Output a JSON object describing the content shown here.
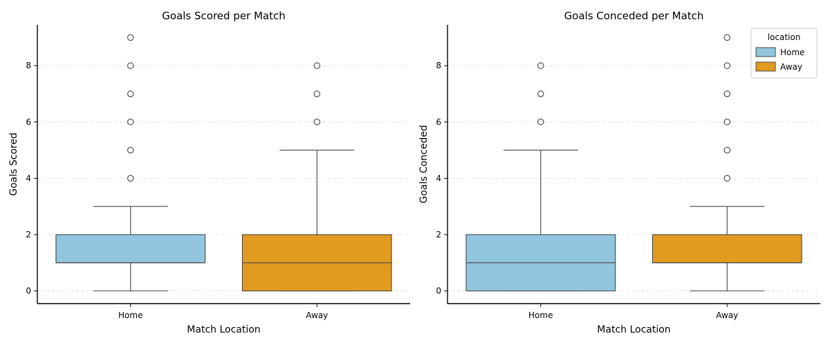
{
  "chart_data": [
    {
      "type": "box",
      "title": "Goals Scored per Match",
      "xlabel": "Match Location",
      "ylabel": "Goals Scored",
      "categories": [
        "Home",
        "Away"
      ],
      "ylim": [
        -0.45,
        9.45
      ],
      "yticks": [
        0,
        2,
        4,
        6,
        8
      ],
      "grid": "horizontal dashed",
      "boxes": [
        {
          "category": "Home",
          "color": "#92c6de",
          "whisker_low": 0,
          "q1": 1,
          "median": 1,
          "q3": 2,
          "whisker_high": 3,
          "outliers": [
            4,
            5,
            6,
            7,
            8,
            9
          ]
        },
        {
          "category": "Away",
          "color": "#e19b20",
          "whisker_low": 0,
          "q1": 0,
          "median": 1,
          "q3": 2,
          "whisker_high": 5,
          "outliers": [
            6,
            7,
            8
          ]
        }
      ]
    },
    {
      "type": "box",
      "title": "Goals Conceded per Match",
      "xlabel": "Match Location",
      "ylabel": "Goals Conceded",
      "categories": [
        "Home",
        "Away"
      ],
      "ylim": [
        -0.45,
        9.45
      ],
      "yticks": [
        0,
        2,
        4,
        6,
        8
      ],
      "grid": "horizontal dashed",
      "legend": {
        "title": "location",
        "placement": "top-right",
        "entries": [
          {
            "label": "Home",
            "color": "#92c6de"
          },
          {
            "label": "Away",
            "color": "#e19b20"
          }
        ]
      },
      "boxes": [
        {
          "category": "Home",
          "color": "#92c6de",
          "whisker_low": 0,
          "q1": 0,
          "median": 1,
          "q3": 2,
          "whisker_high": 5,
          "outliers": [
            6,
            7,
            8
          ]
        },
        {
          "category": "Away",
          "color": "#e19b20",
          "whisker_low": 0,
          "q1": 1,
          "median": 1,
          "q3": 2,
          "whisker_high": 3,
          "outliers": [
            4,
            5,
            6,
            7,
            8,
            9
          ]
        }
      ]
    }
  ]
}
